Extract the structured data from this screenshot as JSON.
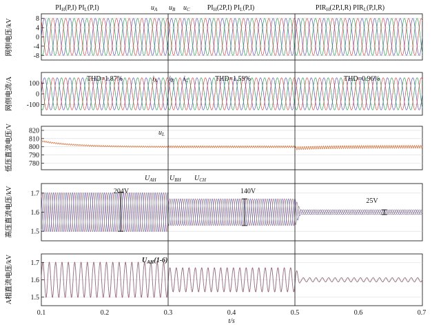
{
  "figure": {
    "xlabel": "t/s",
    "x_ticks": [
      "0.1",
      "0.2",
      "0.3",
      "0.4",
      "0.5",
      "0.6",
      "0.7"
    ]
  },
  "chart_data": [
    {
      "id": "panel1",
      "type": "line",
      "ylabel": "网侧电压/kV",
      "xlim": [
        0.1,
        0.7
      ],
      "ylim": [
        -10,
        10
      ],
      "yticks": [
        -8,
        -4,
        0,
        4,
        8
      ],
      "labels": {
        "control1": "PI_H(P,I)  PI_L(P,I)",
        "control2": "PI_H(2P,I)  PI_L(P,I)",
        "control3": "PIR_H(2P,I,R)  PIR_L(P,I,R)",
        "ua": "u_A",
        "ub": "u_B",
        "uc": "u_C"
      },
      "series": [
        {
          "name": "u_A",
          "color": "#5a55b5",
          "type": "sine",
          "amplitude": 8,
          "frequency_hz": 50,
          "phase_deg": 0
        },
        {
          "name": "u_B",
          "color": "#2f9d55",
          "type": "sine",
          "amplitude": 8,
          "frequency_hz": 50,
          "phase_deg": -120
        },
        {
          "name": "u_C",
          "color": "#d24a4a",
          "type": "sine",
          "amplitude": 8,
          "frequency_hz": 50,
          "phase_deg": 120
        }
      ]
    },
    {
      "id": "panel2",
      "type": "line",
      "ylabel": "网侧电流/A",
      "xlim": [
        0.1,
        0.7
      ],
      "ylim": [
        -200,
        200
      ],
      "yticks": [
        -100,
        0,
        100
      ],
      "labels": {
        "thd1": "THD=1.87%",
        "thd2": "THD=1.59%",
        "thd3": "THD=0.96%",
        "ia": "i_A",
        "ib": "i_B",
        "ic": "i_C"
      },
      "series": [
        {
          "name": "i_A",
          "color": "#5a55b5",
          "type": "sine",
          "amplitude": 150,
          "frequency_hz": 50,
          "phase_deg": 0
        },
        {
          "name": "i_B",
          "color": "#2f9d55",
          "type": "sine",
          "amplitude": 150,
          "frequency_hz": 50,
          "phase_deg": -120
        },
        {
          "name": "i_C",
          "color": "#d24a4a",
          "type": "sine",
          "amplitude": 150,
          "frequency_hz": 50,
          "phase_deg": 120
        }
      ]
    },
    {
      "id": "panel3",
      "type": "line",
      "ylabel": "低压直流电压/V",
      "xlim": [
        0.1,
        0.7
      ],
      "ylim": [
        772,
        825
      ],
      "yticks": [
        780,
        790,
        800,
        810,
        820
      ],
      "labels": {
        "ul": "u_L"
      },
      "series": [
        {
          "name": "u_L",
          "color": "#d2692b",
          "type": "envelope",
          "segments": [
            {
              "t": [
                0.1,
                0.3
              ],
              "start": 807,
              "end": 800,
              "ripple": 0.8
            },
            {
              "t": [
                0.3,
                0.5
              ],
              "start": 800,
              "end": 800,
              "ripple": 1.2
            },
            {
              "t": [
                0.5,
                0.7
              ],
              "start": 798,
              "end": 800,
              "ripple": 1.8
            }
          ]
        }
      ]
    },
    {
      "id": "panel4",
      "type": "line",
      "ylabel": "高压直流电压/kV",
      "xlim": [
        0.1,
        0.7
      ],
      "ylim": [
        1.45,
        1.75
      ],
      "yticks": [
        1.5,
        1.6,
        1.7
      ],
      "labels": {
        "uah": "U_AH",
        "ubh": "U_BH",
        "uch": "U_CH",
        "dv1": "204V",
        "dv2": "140V",
        "dv3": "25V"
      },
      "annotations": [
        {
          "t": 0.225,
          "low": 1.5,
          "high": 1.704
        },
        {
          "t": 0.42,
          "low": 1.53,
          "high": 1.67
        },
        {
          "t": 0.64,
          "low": 1.5875,
          "high": 1.6125
        }
      ],
      "series": [
        {
          "name": "U_AH",
          "color": "#a66a8a",
          "type": "ripple",
          "center": 1.6,
          "amplitudes": [
            0.102,
            0.07,
            0.0125
          ],
          "frequency_hz": 100,
          "phase_deg": 0
        },
        {
          "name": "U_BH",
          "color": "#6b6bb5",
          "type": "ripple",
          "center": 1.6,
          "amplitudes": [
            0.102,
            0.07,
            0.0125
          ],
          "frequency_hz": 100,
          "phase_deg": 120
        },
        {
          "name": "U_CH",
          "color": "#8a8a8a",
          "type": "ripple",
          "center": 1.6,
          "amplitudes": [
            0.102,
            0.07,
            0.0125
          ],
          "frequency_hz": 100,
          "phase_deg": 240
        }
      ]
    },
    {
      "id": "panel5",
      "type": "line",
      "ylabel": "A相直流电压/kV",
      "xlim": [
        0.1,
        0.7
      ],
      "ylim": [
        1.45,
        1.75
      ],
      "yticks": [
        1.5,
        1.6,
        1.7
      ],
      "labels": {
        "uah16": "U_AH(1-6)"
      },
      "series": [
        {
          "name": "U_AH(1-6)",
          "color": "#b0306a",
          "type": "ripple",
          "center": 1.6,
          "amplitudes": [
            0.102,
            0.07,
            0.0125
          ],
          "frequency_hz": 100,
          "phase_deg": 0
        },
        {
          "name": "U_AH(1-6) b",
          "color": "#8f8f8f",
          "type": "ripple",
          "center": 1.6,
          "amplitudes": [
            0.097,
            0.066,
            0.011
          ],
          "frequency_hz": 100,
          "phase_deg": 10
        }
      ]
    }
  ]
}
